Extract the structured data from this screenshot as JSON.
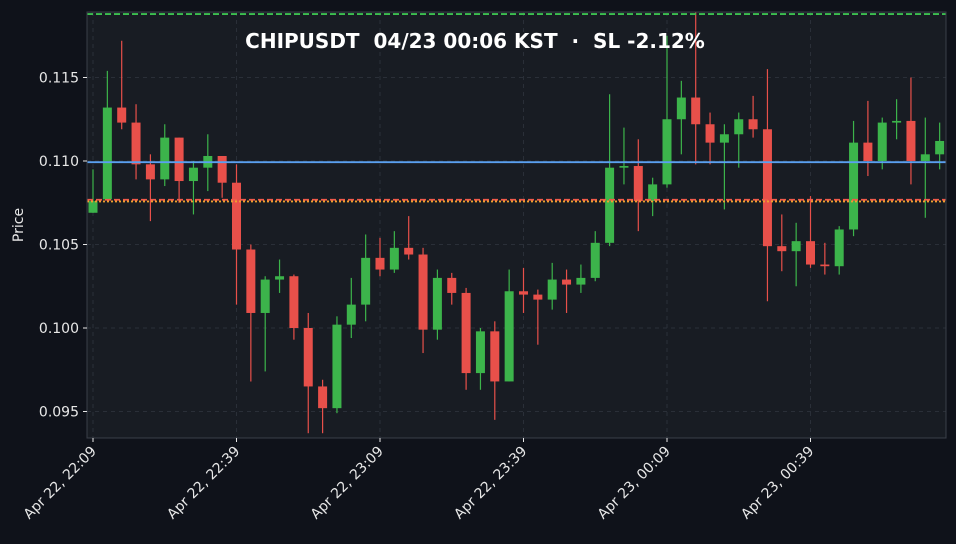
{
  "chart": {
    "title": "CHIPUSDT  04/23 00:06 KST  ·  SL -2.12%",
    "ylabel": "Price",
    "colors": {
      "background": "#0f121a",
      "plot_background": "#181c23",
      "grid": "#2a2f38",
      "up": "#3cb44b",
      "down": "#e8504a",
      "blue_line": "#5aa0f0",
      "green_dashed_line": "#3cc050",
      "red_dashed_line": "#f05a4a",
      "orange_dotted_line": "#f0a030",
      "axis_text": "#e8e8e8"
    }
  },
  "chart_data": {
    "type": "candlestick",
    "title": "CHIPUSDT  04/23 00:06 KST  ·  SL -2.12%",
    "xlabel": "",
    "ylabel": "Price",
    "ylim": [
      0.0934,
      0.119
    ],
    "yticks": [
      0.095,
      0.1,
      0.105,
      0.11,
      0.115
    ],
    "ytick_labels": [
      "0.095",
      "0.100",
      "0.105",
      "0.110",
      "0.115"
    ],
    "xtick_labels": [
      "Apr 22, 22:09",
      "Apr 22, 22:39",
      "Apr 22, 23:09",
      "Apr 22, 23:39",
      "Apr 23, 00:09",
      "Apr 23, 00:39"
    ],
    "xtick_candle_index": [
      0,
      10,
      20,
      30,
      40,
      50
    ],
    "interval_minutes": 3,
    "grid": true,
    "legend": null,
    "horizontal_lines": [
      {
        "name": "take-profit",
        "value": 0.1188,
        "style": "dashed",
        "color": "#3cc050"
      },
      {
        "name": "current-price",
        "value": 0.10993,
        "style": "solid",
        "color": "#5aa0f0"
      },
      {
        "name": "stop-loss",
        "value": 0.10768,
        "style": "dashed",
        "color": "#f05a4a"
      },
      {
        "name": "entry",
        "value": 0.10758,
        "style": "dotted",
        "color": "#f0a030"
      }
    ],
    "candles": [
      {
        "o": 0.1069,
        "h": 0.1095,
        "l": 0.1069,
        "c": 0.1076
      },
      {
        "o": 0.1077,
        "h": 0.1154,
        "l": 0.1077,
        "c": 0.1132
      },
      {
        "o": 0.1132,
        "h": 0.1172,
        "l": 0.1119,
        "c": 0.1123
      },
      {
        "o": 0.1123,
        "h": 0.1134,
        "l": 0.1089,
        "c": 0.1098
      },
      {
        "o": 0.1098,
        "h": 0.1104,
        "l": 0.1064,
        "c": 0.1089
      },
      {
        "o": 0.1089,
        "h": 0.1122,
        "l": 0.1085,
        "c": 0.1114
      },
      {
        "o": 0.1114,
        "h": 0.1114,
        "l": 0.1075,
        "c": 0.1088
      },
      {
        "o": 0.1088,
        "h": 0.11,
        "l": 0.1068,
        "c": 0.1096
      },
      {
        "o": 0.1096,
        "h": 0.1116,
        "l": 0.1082,
        "c": 0.1103
      },
      {
        "o": 0.1103,
        "h": 0.1103,
        "l": 0.1078,
        "c": 0.1087
      },
      {
        "o": 0.1087,
        "h": 0.1098,
        "l": 0.1014,
        "c": 0.1047
      },
      {
        "o": 0.1047,
        "h": 0.105,
        "l": 0.0968,
        "c": 0.1009
      },
      {
        "o": 0.1009,
        "h": 0.1031,
        "l": 0.0974,
        "c": 0.1029
      },
      {
        "o": 0.1029,
        "h": 0.1041,
        "l": 0.1021,
        "c": 0.1031
      },
      {
        "o": 0.1031,
        "h": 0.1032,
        "l": 0.0993,
        "c": 0.1
      },
      {
        "o": 0.1,
        "h": 0.1009,
        "l": 0.0937,
        "c": 0.0965
      },
      {
        "o": 0.0965,
        "h": 0.0969,
        "l": 0.0937,
        "c": 0.0952
      },
      {
        "o": 0.0952,
        "h": 0.1007,
        "l": 0.0949,
        "c": 0.1002
      },
      {
        "o": 0.1002,
        "h": 0.103,
        "l": 0.0994,
        "c": 0.1014
      },
      {
        "o": 0.1014,
        "h": 0.1056,
        "l": 0.1004,
        "c": 0.1042
      },
      {
        "o": 0.1042,
        "h": 0.1054,
        "l": 0.1031,
        "c": 0.1035
      },
      {
        "o": 0.1035,
        "h": 0.1058,
        "l": 0.1033,
        "c": 0.1048
      },
      {
        "o": 0.1048,
        "h": 0.1067,
        "l": 0.1041,
        "c": 0.1044
      },
      {
        "o": 0.1044,
        "h": 0.1048,
        "l": 0.0985,
        "c": 0.0999
      },
      {
        "o": 0.0999,
        "h": 0.1035,
        "l": 0.0993,
        "c": 0.103
      },
      {
        "o": 0.103,
        "h": 0.1033,
        "l": 0.1014,
        "c": 0.1021
      },
      {
        "o": 0.1021,
        "h": 0.1024,
        "l": 0.0963,
        "c": 0.0973
      },
      {
        "o": 0.0973,
        "h": 0.1,
        "l": 0.0963,
        "c": 0.0998
      },
      {
        "o": 0.0998,
        "h": 0.1004,
        "l": 0.0945,
        "c": 0.0968
      },
      {
        "o": 0.0968,
        "h": 0.1035,
        "l": 0.0968,
        "c": 0.1022
      },
      {
        "o": 0.1022,
        "h": 0.1036,
        "l": 0.1009,
        "c": 0.102
      },
      {
        "o": 0.102,
        "h": 0.1023,
        "l": 0.099,
        "c": 0.1017
      },
      {
        "o": 0.1017,
        "h": 0.1039,
        "l": 0.1011,
        "c": 0.1029
      },
      {
        "o": 0.1029,
        "h": 0.1035,
        "l": 0.1009,
        "c": 0.1026
      },
      {
        "o": 0.1026,
        "h": 0.1038,
        "l": 0.1021,
        "c": 0.103
      },
      {
        "o": 0.103,
        "h": 0.1058,
        "l": 0.1028,
        "c": 0.1051
      },
      {
        "o": 0.1051,
        "h": 0.114,
        "l": 0.1049,
        "c": 0.1096
      },
      {
        "o": 0.1096,
        "h": 0.112,
        "l": 0.1086,
        "c": 0.1097
      },
      {
        "o": 0.1097,
        "h": 0.1113,
        "l": 0.1058,
        "c": 0.1076
      },
      {
        "o": 0.1076,
        "h": 0.109,
        "l": 0.1067,
        "c": 0.1086
      },
      {
        "o": 0.1086,
        "h": 0.1175,
        "l": 0.1084,
        "c": 0.1125
      },
      {
        "o": 0.1125,
        "h": 0.1148,
        "l": 0.1104,
        "c": 0.1138
      },
      {
        "o": 0.1138,
        "h": 0.1189,
        "l": 0.1098,
        "c": 0.1122
      },
      {
        "o": 0.1122,
        "h": 0.1129,
        "l": 0.1098,
        "c": 0.1111
      },
      {
        "o": 0.1111,
        "h": 0.1122,
        "l": 0.1071,
        "c": 0.1116
      },
      {
        "o": 0.1116,
        "h": 0.1129,
        "l": 0.1096,
        "c": 0.1125
      },
      {
        "o": 0.1125,
        "h": 0.1139,
        "l": 0.1114,
        "c": 0.1119
      },
      {
        "o": 0.1119,
        "h": 0.1155,
        "l": 0.1016,
        "c": 0.1049
      },
      {
        "o": 0.1049,
        "h": 0.1068,
        "l": 0.1034,
        "c": 0.1046
      },
      {
        "o": 0.1046,
        "h": 0.1063,
        "l": 0.1025,
        "c": 0.1052
      },
      {
        "o": 0.1052,
        "h": 0.1079,
        "l": 0.1036,
        "c": 0.1038
      },
      {
        "o": 0.1038,
        "h": 0.1051,
        "l": 0.1032,
        "c": 0.1037
      },
      {
        "o": 0.1037,
        "h": 0.1061,
        "l": 0.1032,
        "c": 0.1059
      },
      {
        "o": 0.1059,
        "h": 0.1124,
        "l": 0.1055,
        "c": 0.1111
      },
      {
        "o": 0.1111,
        "h": 0.1136,
        "l": 0.1091,
        "c": 0.11
      },
      {
        "o": 0.11,
        "h": 0.1126,
        "l": 0.1095,
        "c": 0.1123
      },
      {
        "o": 0.1123,
        "h": 0.1137,
        "l": 0.1113,
        "c": 0.1124
      },
      {
        "o": 0.1124,
        "h": 0.115,
        "l": 0.1086,
        "c": 0.11
      },
      {
        "o": 0.11,
        "h": 0.1126,
        "l": 0.1066,
        "c": 0.1104
      },
      {
        "o": 0.1104,
        "h": 0.1123,
        "l": 0.1095,
        "c": 0.1112
      }
    ]
  }
}
